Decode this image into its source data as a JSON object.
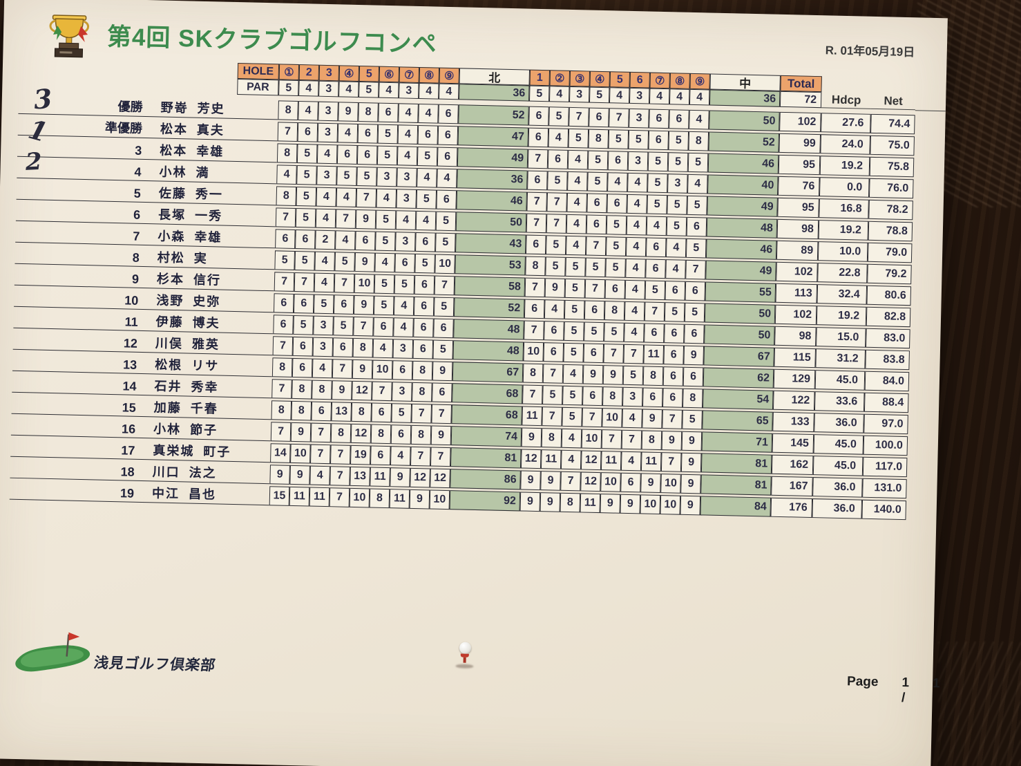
{
  "page": {
    "title": "第4回 SKクラブゴルフコンペ",
    "date": "R. 01年05月19日",
    "footer": {
      "club": "浅見ゴルフ倶楽部",
      "page": {
        "label": "Page",
        "current": "1 /",
        "total": "1"
      }
    }
  },
  "table": {
    "header": {
      "hole_label": "HOLE",
      "par_label": "PAR",
      "out_label": "北",
      "in_label": "中",
      "total_label": "Total",
      "hdcp_label": "Hdcp",
      "net_label": "Net",
      "holes_out": [
        "①",
        "2",
        "3",
        "④",
        "5",
        "⑥",
        "⑦",
        "⑧",
        "⑨"
      ],
      "holes_in": [
        "1",
        "②",
        "③",
        "④",
        "5",
        "6",
        "⑦",
        "⑧",
        "⑨"
      ],
      "par_out": [
        5,
        4,
        3,
        4,
        5,
        4,
        3,
        4,
        4
      ],
      "par_out_total": 36,
      "par_in": [
        5,
        4,
        3,
        5,
        4,
        3,
        4,
        4,
        4
      ],
      "par_in_total": 36,
      "par_total": 72
    },
    "players": [
      {
        "rank": "優勝",
        "name": "野嵜 芳史",
        "out": [
          8,
          4,
          3,
          9,
          8,
          6,
          4,
          4,
          6
        ],
        "out_total": 52,
        "in": [
          6,
          5,
          7,
          6,
          7,
          3,
          6,
          6,
          4
        ],
        "in_total": 50,
        "total": 102,
        "hdcp": "27.6",
        "net": "74.4"
      },
      {
        "rank": "準優勝",
        "name": "松本 真夫",
        "out": [
          7,
          6,
          3,
          4,
          6,
          5,
          4,
          6,
          6
        ],
        "out_total": 47,
        "in": [
          6,
          4,
          5,
          8,
          5,
          5,
          6,
          5,
          8
        ],
        "in_total": 52,
        "total": 99,
        "hdcp": "24.0",
        "net": "75.0"
      },
      {
        "rank": "3",
        "name": "松本 幸雄",
        "out": [
          8,
          5,
          4,
          6,
          6,
          5,
          4,
          5,
          6
        ],
        "out_total": 49,
        "in": [
          7,
          6,
          4,
          5,
          6,
          3,
          5,
          5,
          5
        ],
        "in_total": 46,
        "total": 95,
        "hdcp": "19.2",
        "net": "75.8"
      },
      {
        "rank": "4",
        "name": "小林 満",
        "out": [
          4,
          5,
          3,
          5,
          5,
          3,
          3,
          4,
          4
        ],
        "out_total": 36,
        "in": [
          6,
          5,
          4,
          5,
          4,
          4,
          5,
          3,
          4
        ],
        "in_total": 40,
        "total": 76,
        "hdcp": "0.0",
        "net": "76.0"
      },
      {
        "rank": "5",
        "name": "佐藤 秀一",
        "out": [
          8,
          5,
          4,
          4,
          7,
          4,
          3,
          5,
          6
        ],
        "out_total": 46,
        "in": [
          7,
          7,
          4,
          6,
          6,
          4,
          5,
          5,
          5
        ],
        "in_total": 49,
        "total": 95,
        "hdcp": "16.8",
        "net": "78.2"
      },
      {
        "rank": "6",
        "name": "長塚 一秀",
        "out": [
          7,
          5,
          4,
          7,
          9,
          5,
          4,
          4,
          5
        ],
        "out_total": 50,
        "in": [
          7,
          7,
          4,
          6,
          5,
          4,
          4,
          5,
          6
        ],
        "in_total": 48,
        "total": 98,
        "hdcp": "19.2",
        "net": "78.8"
      },
      {
        "rank": "7",
        "name": "小森 幸雄",
        "out": [
          6,
          6,
          2,
          4,
          6,
          5,
          3,
          6,
          5
        ],
        "out_total": 43,
        "in": [
          6,
          5,
          4,
          7,
          5,
          4,
          6,
          4,
          5
        ],
        "in_total": 46,
        "total": 89,
        "hdcp": "10.0",
        "net": "79.0"
      },
      {
        "rank": "8",
        "name": "村松 実",
        "out": [
          5,
          5,
          4,
          5,
          9,
          4,
          6,
          5,
          10
        ],
        "out_total": 53,
        "in": [
          8,
          5,
          5,
          5,
          5,
          4,
          6,
          4,
          7
        ],
        "in_total": 49,
        "total": 102,
        "hdcp": "22.8",
        "net": "79.2"
      },
      {
        "rank": "9",
        "name": "杉本 信行",
        "out": [
          7,
          7,
          4,
          7,
          10,
          5,
          5,
          6,
          7
        ],
        "out_total": 58,
        "in": [
          7,
          9,
          5,
          7,
          6,
          4,
          5,
          6,
          6
        ],
        "in_total": 55,
        "total": 113,
        "hdcp": "32.4",
        "net": "80.6"
      },
      {
        "rank": "10",
        "name": "浅野 史弥",
        "out": [
          6,
          6,
          5,
          6,
          9,
          5,
          4,
          6,
          5
        ],
        "out_total": 52,
        "in": [
          6,
          4,
          5,
          6,
          8,
          4,
          7,
          5,
          5
        ],
        "in_total": 50,
        "total": 102,
        "hdcp": "19.2",
        "net": "82.8"
      },
      {
        "rank": "11",
        "name": "伊藤 博夫",
        "out": [
          6,
          5,
          3,
          5,
          7,
          6,
          4,
          6,
          6
        ],
        "out_total": 48,
        "in": [
          7,
          6,
          5,
          5,
          5,
          4,
          6,
          6,
          6
        ],
        "in_total": 50,
        "total": 98,
        "hdcp": "15.0",
        "net": "83.0"
      },
      {
        "rank": "12",
        "name": "川俣 雅英",
        "out": [
          7,
          6,
          3,
          6,
          8,
          4,
          3,
          6,
          5
        ],
        "out_total": 48,
        "in": [
          10,
          6,
          5,
          6,
          7,
          7,
          11,
          6,
          9
        ],
        "in_total": 67,
        "total": 115,
        "hdcp": "31.2",
        "net": "83.8"
      },
      {
        "rank": "13",
        "name": "松根 リサ",
        "out": [
          8,
          6,
          4,
          7,
          9,
          10,
          6,
          8,
          9
        ],
        "out_total": 67,
        "in": [
          8,
          7,
          4,
          9,
          9,
          5,
          8,
          6,
          6
        ],
        "in_total": 62,
        "total": 129,
        "hdcp": "45.0",
        "net": "84.0"
      },
      {
        "rank": "14",
        "name": "石井 秀幸",
        "out": [
          7,
          8,
          8,
          9,
          12,
          7,
          3,
          8,
          6
        ],
        "out_total": 68,
        "in": [
          7,
          5,
          5,
          6,
          8,
          3,
          6,
          6,
          8
        ],
        "in_total": 54,
        "total": 122,
        "hdcp": "33.6",
        "net": "88.4"
      },
      {
        "rank": "15",
        "name": "加藤 千春",
        "out": [
          8,
          8,
          6,
          13,
          8,
          6,
          5,
          7,
          7
        ],
        "out_total": 68,
        "in": [
          11,
          7,
          5,
          7,
          10,
          4,
          9,
          7,
          5
        ],
        "in_total": 65,
        "total": 133,
        "hdcp": "36.0",
        "net": "97.0"
      },
      {
        "rank": "16",
        "name": "小林 節子",
        "out": [
          7,
          9,
          7,
          8,
          12,
          8,
          6,
          8,
          9
        ],
        "out_total": 74,
        "in": [
          9,
          8,
          4,
          10,
          7,
          7,
          8,
          9,
          9
        ],
        "in_total": 71,
        "total": 145,
        "hdcp": "45.0",
        "net": "100.0"
      },
      {
        "rank": "17",
        "name": "真栄城 町子",
        "out": [
          14,
          10,
          7,
          7,
          19,
          6,
          4,
          7,
          7
        ],
        "out_total": 81,
        "in": [
          12,
          11,
          4,
          12,
          11,
          4,
          11,
          7,
          9
        ],
        "in_total": 81,
        "total": 162,
        "hdcp": "45.0",
        "net": "117.0"
      },
      {
        "rank": "18",
        "name": "川口 法之",
        "out": [
          9,
          9,
          4,
          7,
          13,
          11,
          9,
          12,
          12
        ],
        "out_total": 86,
        "in": [
          9,
          9,
          7,
          12,
          10,
          6,
          9,
          10,
          9
        ],
        "in_total": 81,
        "total": 167,
        "hdcp": "36.0",
        "net": "131.0"
      },
      {
        "rank": "19",
        "name": "中江 昌也",
        "out": [
          15,
          11,
          11,
          7,
          10,
          8,
          11,
          9,
          10
        ],
        "out_total": 92,
        "in": [
          9,
          9,
          8,
          11,
          9,
          9,
          10,
          10,
          9
        ],
        "in_total": 84,
        "total": 176,
        "hdcp": "36.0",
        "net": "140.0"
      }
    ]
  },
  "annotations": {
    "handwritten": [
      "3",
      "1",
      "2"
    ]
  },
  "colors": {
    "title_green": "#3d8b4e",
    "header_orange": "#eca36b",
    "subtotal_green": "#b7c6a7",
    "flag_red": "#c9372b",
    "paper": "#f0e9dc",
    "wood": "#2a1a10"
  }
}
